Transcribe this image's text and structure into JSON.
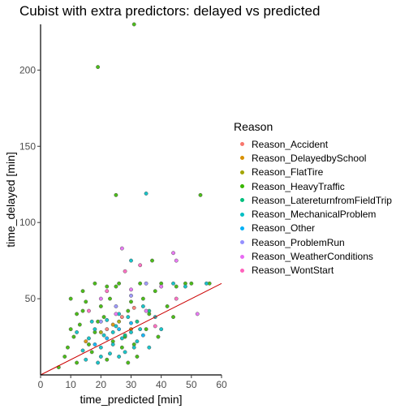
{
  "chart_data": {
    "type": "scatter",
    "title": "Cubist with extra predictors: delayed vs predicted",
    "xlabel": "time_predicted [min]",
    "ylabel": "time_delayed [min]",
    "xlim": [
      0,
      60
    ],
    "ylim": [
      0,
      230
    ],
    "x_ticks": [
      0,
      10,
      20,
      30,
      40,
      50,
      60
    ],
    "y_ticks": [
      50,
      100,
      150,
      200
    ],
    "grid": false,
    "legend_title": "Reason",
    "legend_position": "right",
    "reference_line": {
      "x": [
        0,
        60
      ],
      "y": [
        0,
        60
      ],
      "color": "#cc0000"
    },
    "series": [
      {
        "name": "Reason_Accident",
        "color": "#F8766D",
        "values": [
          [
            22,
            30
          ],
          [
            27,
            38
          ],
          [
            31,
            44
          ]
        ]
      },
      {
        "name": "Reason_DelayedbySchool",
        "color": "#D89000",
        "values": [
          [
            15,
            22
          ],
          [
            24,
            33
          ],
          [
            30,
            30
          ]
        ]
      },
      {
        "name": "Reason_FlatTire",
        "color": "#A3A500",
        "values": [
          [
            20,
            28
          ],
          [
            26,
            35
          ]
        ]
      },
      {
        "name": "Reason_HeavyTraffic",
        "color": "#39B600",
        "values": [
          [
            31,
            230
          ],
          [
            19,
            202
          ],
          [
            25,
            118
          ],
          [
            53,
            118
          ],
          [
            37,
            75
          ],
          [
            18,
            60
          ],
          [
            8,
            12
          ],
          [
            10,
            30
          ],
          [
            12,
            40
          ],
          [
            14,
            55
          ],
          [
            16,
            20
          ],
          [
            20,
            45
          ],
          [
            22,
            10
          ],
          [
            25,
            58
          ],
          [
            28,
            25
          ],
          [
            30,
            48
          ],
          [
            33,
            60
          ],
          [
            36,
            40
          ],
          [
            40,
            60
          ],
          [
            45,
            58
          ],
          [
            12,
            8
          ],
          [
            6,
            5
          ],
          [
            9,
            18
          ],
          [
            11,
            25
          ],
          [
            13,
            33
          ],
          [
            17,
            15
          ],
          [
            21,
            38
          ],
          [
            23,
            50
          ],
          [
            27,
            18
          ],
          [
            29,
            42
          ],
          [
            35,
            30
          ],
          [
            38,
            55
          ],
          [
            42,
            45
          ],
          [
            48,
            60
          ],
          [
            56,
            60
          ],
          [
            15,
            48
          ],
          [
            19,
            35
          ],
          [
            24,
            22
          ],
          [
            26,
            60
          ],
          [
            32,
            12
          ],
          [
            34,
            50
          ],
          [
            39,
            25
          ],
          [
            44,
            38
          ],
          [
            50,
            60
          ],
          [
            10,
            50
          ],
          [
            14,
            42
          ],
          [
            18,
            28
          ],
          [
            22,
            58
          ],
          [
            29,
            8
          ],
          [
            31,
            20
          ]
        ]
      },
      {
        "name": "Reason_LatereturnfromFieldTrip",
        "color": "#00BF7D",
        "values": [
          [
            28,
            26
          ],
          [
            32,
            35
          ],
          [
            36,
            42
          ]
        ]
      },
      {
        "name": "Reason_MechanicalProblem",
        "color": "#00BFC4",
        "values": [
          [
            35,
            119
          ],
          [
            30,
            75
          ],
          [
            14,
            16
          ],
          [
            16,
            24
          ],
          [
            18,
            30
          ],
          [
            20,
            12
          ],
          [
            22,
            36
          ],
          [
            24,
            20
          ],
          [
            26,
            40
          ],
          [
            28,
            15
          ],
          [
            30,
            28
          ],
          [
            32,
            22
          ],
          [
            34,
            45
          ],
          [
            36,
            18
          ],
          [
            15,
            10
          ],
          [
            19,
            8
          ],
          [
            21,
            26
          ],
          [
            23,
            14
          ],
          [
            25,
            32
          ],
          [
            27,
            24
          ],
          [
            29,
            38
          ],
          [
            31,
            18
          ],
          [
            33,
            30
          ],
          [
            17,
            35
          ],
          [
            12,
            28
          ],
          [
            26,
            12
          ],
          [
            38,
            38
          ],
          [
            40,
            30
          ],
          [
            44,
            60
          ],
          [
            48,
            58
          ],
          [
            55,
            60
          ],
          [
            20,
            18
          ],
          [
            24,
            28
          ]
        ]
      },
      {
        "name": "Reason_Other",
        "color": "#00B0F6",
        "values": [
          [
            18,
            20
          ],
          [
            22,
            24
          ],
          [
            26,
            30
          ],
          [
            30,
            34
          ],
          [
            34,
            26
          ]
        ]
      },
      {
        "name": "Reason_ProblemRun",
        "color": "#9590FF",
        "values": [
          [
            20,
            35
          ],
          [
            25,
            45
          ],
          [
            30,
            52
          ],
          [
            35,
            60
          ]
        ]
      },
      {
        "name": "Reason_WeatherConditions",
        "color": "#E76BF3",
        "values": [
          [
            27,
            83
          ],
          [
            44,
            80
          ],
          [
            45,
            75
          ],
          [
            20,
            50
          ],
          [
            25,
            40
          ],
          [
            30,
            56
          ],
          [
            35,
            42
          ],
          [
            40,
            58
          ],
          [
            52,
            40
          ]
        ]
      },
      {
        "name": "Reason_WontStart",
        "color": "#FF62BC",
        "values": [
          [
            28,
            68
          ],
          [
            33,
            72
          ],
          [
            16,
            42
          ],
          [
            22,
            55
          ],
          [
            38,
            32
          ],
          [
            45,
            50
          ]
        ]
      }
    ]
  }
}
